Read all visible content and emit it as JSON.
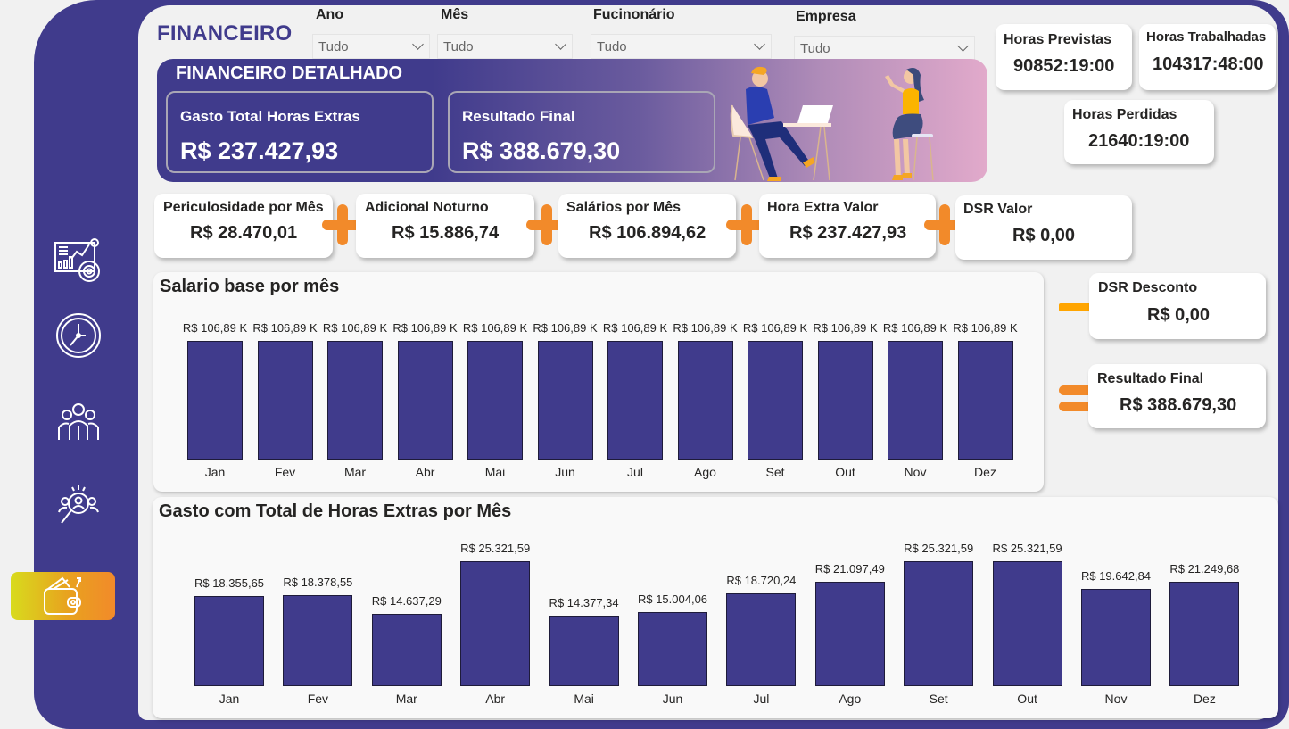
{
  "page": {
    "title": "FINANCEIRO"
  },
  "colors": {
    "brand": "#403b8c",
    "accent_orange": "#f28a2a",
    "accent_minus": "#ffa500",
    "bar": "#403b8c"
  },
  "sidebar": {
    "items": [
      {
        "name": "dashboard",
        "icon": "analytics-dashboard-icon"
      },
      {
        "name": "horas",
        "icon": "clock-icon"
      },
      {
        "name": "equipe",
        "icon": "team-icon"
      },
      {
        "name": "recrutamento",
        "icon": "people-search-icon"
      },
      {
        "name": "financeiro",
        "icon": "wallet-icon",
        "active": true
      }
    ]
  },
  "filters": [
    {
      "label": "Ano",
      "value": "Tudo"
    },
    {
      "label": "Mês",
      "value": "Tudo"
    },
    {
      "label": "Fucinonário",
      "value": "Tudo"
    },
    {
      "label": "Empresa",
      "value": "Tudo"
    }
  ],
  "banner": {
    "title": "FINANCEIRO DETALHADO",
    "cards": [
      {
        "label": "Gasto Total Horas Extras",
        "value": "R$ 237.427,93"
      },
      {
        "label": "Resultado Final",
        "value": "R$ 388.679,30"
      }
    ]
  },
  "hours": {
    "previstas": {
      "label": "Horas Previstas",
      "value": "90852:19:00"
    },
    "trabalhadas": {
      "label": "Horas Trabalhadas",
      "value": "104317:48:00"
    },
    "perdidas": {
      "label": "Horas Perdidas",
      "value": "21640:19:00"
    }
  },
  "kpis": [
    {
      "label": "Periculosidade por Mês",
      "value": "R$ 28.470,01"
    },
    {
      "label": "Adicional Noturno",
      "value": "R$ 15.886,74"
    },
    {
      "label": "Salários por Mês",
      "value": "R$ 106.894,62"
    },
    {
      "label": "Hora Extra Valor",
      "value": "R$ 237.427,93"
    },
    {
      "label": "DSR Valor",
      "value": "R$ 0,00"
    }
  ],
  "dsr_desconto": {
    "label": "DSR Desconto",
    "value": "R$ 0,00"
  },
  "resultado_final": {
    "label": "Resultado Final",
    "value": "R$ 388.679,30"
  },
  "chart_data": [
    {
      "type": "bar",
      "title": "Salario base por mês",
      "categories": [
        "Jan",
        "Fev",
        "Mar",
        "Abr",
        "Mai",
        "Jun",
        "Jul",
        "Ago",
        "Set",
        "Out",
        "Nov",
        "Dez"
      ],
      "values": [
        106890,
        106890,
        106890,
        106890,
        106890,
        106890,
        106890,
        106890,
        106890,
        106890,
        106890,
        106890
      ],
      "labels": [
        "R$ 106,89 K",
        "R$ 106,89 K",
        "R$ 106,89 K",
        "R$ 106,89 K",
        "R$ 106,89 K",
        "R$ 106,89 K",
        "R$ 106,89 K",
        "R$ 106,89 K",
        "R$ 106,89 K",
        "R$ 106,89 K",
        "R$ 106,89 K",
        "R$ 106,89 K"
      ],
      "xlabel": "",
      "ylabel": "",
      "grid": false,
      "legend": false
    },
    {
      "type": "bar",
      "title": "Gasto com Total de Horas Extras por Mês",
      "categories": [
        "Jan",
        "Fev",
        "Mar",
        "Abr",
        "Mai",
        "Jun",
        "Jul",
        "Ago",
        "Set",
        "Out",
        "Nov",
        "Dez"
      ],
      "values": [
        18355.65,
        18378.55,
        14637.29,
        25321.59,
        14377.34,
        15004.06,
        18720.24,
        21097.49,
        25321.59,
        25321.59,
        19642.84,
        21249.68
      ],
      "labels": [
        "R$ 18.355,65",
        "R$ 18.378,55",
        "R$ 14.637,29",
        "R$ 25.321,59",
        "R$ 14.377,34",
        "R$ 15.004,06",
        "R$ 18.720,24",
        "R$ 21.097,49",
        "R$ 25.321,59",
        "R$ 25.321,59",
        "R$ 19.642,84",
        "R$ 21.249,68"
      ],
      "xlabel": "",
      "ylabel": "",
      "grid": false,
      "legend": false
    }
  ]
}
